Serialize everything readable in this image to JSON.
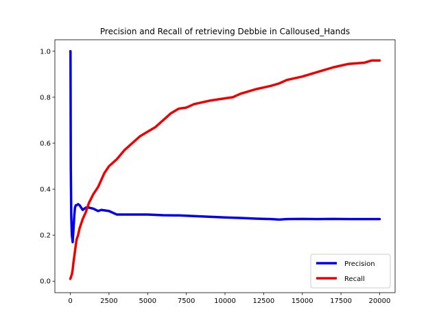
{
  "chart_data": {
    "type": "line",
    "title": "Precision and Recall of retrieving Debbie in Calloused_Hands",
    "xlabel": "",
    "ylabel": "",
    "xlim": [
      -1000,
      21000
    ],
    "ylim": [
      -0.05,
      1.05
    ],
    "x_ticks": [
      0,
      2500,
      5000,
      7500,
      10000,
      12500,
      15000,
      17500,
      20000
    ],
    "x_tick_labels": [
      "0",
      "2500",
      "5000",
      "7500",
      "10000",
      "12500",
      "15000",
      "17500",
      "20000"
    ],
    "y_ticks": [
      0.0,
      0.2,
      0.4,
      0.6,
      0.8,
      1.0
    ],
    "y_tick_labels": [
      "0.0",
      "0.2",
      "0.4",
      "0.6",
      "0.8",
      "1.0"
    ],
    "legend_position": "lower-right",
    "grid": false,
    "series": [
      {
        "name": "Precision",
        "color": "#0000ee",
        "x": [
          0,
          10,
          30,
          60,
          100,
          150,
          200,
          250,
          300,
          350,
          400,
          500,
          600,
          700,
          800,
          1000,
          1200,
          1500,
          1800,
          2000,
          2500,
          3000,
          3500,
          4000,
          5000,
          6000,
          7000,
          8000,
          9000,
          10000,
          11000,
          12000,
          13000,
          13500,
          14000,
          15000,
          16000,
          17000,
          18000,
          19000,
          20000
        ],
        "values": [
          1.0,
          1.0,
          0.5,
          0.28,
          0.2,
          0.17,
          0.22,
          0.28,
          0.32,
          0.33,
          0.33,
          0.335,
          0.33,
          0.32,
          0.31,
          0.32,
          0.32,
          0.315,
          0.305,
          0.31,
          0.305,
          0.29,
          0.29,
          0.29,
          0.29,
          0.287,
          0.286,
          0.283,
          0.28,
          0.277,
          0.275,
          0.272,
          0.27,
          0.268,
          0.27,
          0.271,
          0.27,
          0.271,
          0.27,
          0.27,
          0.27
        ]
      },
      {
        "name": "Recall",
        "color": "#ee0000",
        "x": [
          0,
          50,
          100,
          150,
          200,
          300,
          400,
          500,
          600,
          700,
          800,
          1000,
          1200,
          1500,
          1800,
          2000,
          2200,
          2500,
          3000,
          3500,
          4000,
          4500,
          5000,
          5500,
          6000,
          6500,
          7000,
          7500,
          8000,
          9000,
          10000,
          10500,
          11000,
          12000,
          13000,
          13500,
          14000,
          15000,
          16000,
          17000,
          18000,
          19000,
          19500,
          20000
        ],
        "values": [
          0.01,
          0.02,
          0.03,
          0.05,
          0.08,
          0.13,
          0.18,
          0.2,
          0.23,
          0.25,
          0.27,
          0.3,
          0.34,
          0.38,
          0.41,
          0.44,
          0.47,
          0.5,
          0.53,
          0.57,
          0.6,
          0.63,
          0.65,
          0.67,
          0.7,
          0.73,
          0.75,
          0.755,
          0.77,
          0.785,
          0.795,
          0.8,
          0.815,
          0.835,
          0.85,
          0.86,
          0.875,
          0.89,
          0.91,
          0.93,
          0.945,
          0.95,
          0.96,
          0.96
        ]
      }
    ]
  }
}
